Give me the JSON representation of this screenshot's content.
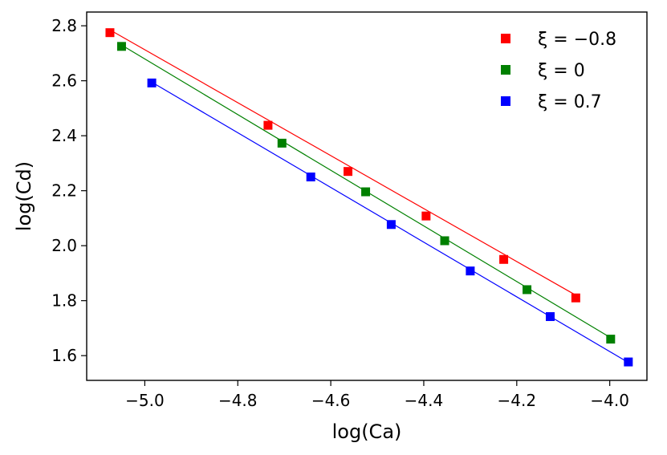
{
  "chart_data": {
    "type": "scatter",
    "title": "",
    "xlabel": "log(Ca)",
    "ylabel": "log(Cd)",
    "xlim": [
      -5.125,
      -3.92
    ],
    "ylim": [
      1.51,
      2.85
    ],
    "xticks": [
      -5.0,
      -4.8,
      -4.6,
      -4.4,
      -4.2,
      -4.0
    ],
    "xtick_labels": [
      "−5.0",
      "−4.8",
      "−4.6",
      "−4.4",
      "−4.2",
      "−4.0"
    ],
    "yticks": [
      1.6,
      1.8,
      2.0,
      2.2,
      2.4,
      2.6,
      2.8
    ],
    "ytick_labels": [
      "1.6",
      "1.8",
      "2.0",
      "2.2",
      "2.4",
      "2.6",
      "2.8"
    ],
    "grid": false,
    "legend_position": "top-right",
    "series": [
      {
        "name": "ξ = −0.8",
        "color": "#ff0000",
        "marker": "square",
        "x": [
          -5.075,
          -4.735,
          -4.563,
          -4.395,
          -4.228,
          -4.073
        ],
        "y": [
          2.775,
          2.438,
          2.27,
          2.108,
          1.95,
          1.81
        ],
        "fit": {
          "x": [
            -5.075,
            -4.073
          ],
          "y": [
            2.785,
            1.82
          ]
        }
      },
      {
        "name": "ξ = 0",
        "color": "#008000",
        "marker": "square",
        "x": [
          -5.05,
          -4.705,
          -4.525,
          -4.355,
          -4.178,
          -3.998
        ],
        "y": [
          2.725,
          2.373,
          2.196,
          2.018,
          1.84,
          1.66
        ],
        "fit": {
          "x": [
            -5.05,
            -3.998
          ],
          "y": [
            2.73,
            1.665
          ]
        }
      },
      {
        "name": "ξ = 0.7",
        "color": "#0000ff",
        "marker": "square",
        "x": [
          -4.985,
          -4.643,
          -4.47,
          -4.3,
          -4.128,
          -3.96
        ],
        "y": [
          2.592,
          2.25,
          2.077,
          1.908,
          1.742,
          1.577
        ],
        "fit": {
          "x": [
            -4.985,
            -3.96
          ],
          "y": [
            2.595,
            1.575
          ]
        }
      }
    ]
  }
}
